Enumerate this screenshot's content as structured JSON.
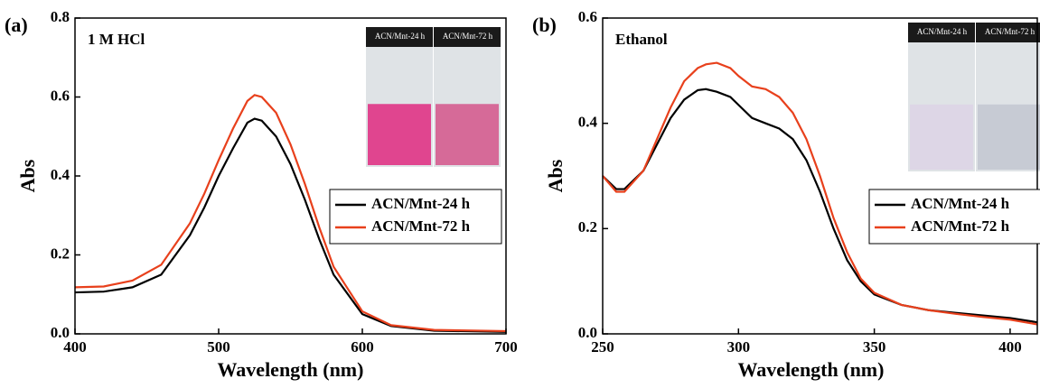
{
  "chart_data": [
    {
      "type": "line",
      "panel_label": "(a)",
      "annotation": "1 M HCl",
      "x_label": "Wavelength (nm)",
      "y_label": "Abs",
      "inset_labels": [
        "ACN/Mnt-24 h",
        "ACN/Mnt-72 h"
      ],
      "x": [
        400,
        420,
        440,
        460,
        480,
        490,
        500,
        510,
        520,
        525,
        530,
        540,
        550,
        560,
        570,
        580,
        600,
        620,
        650,
        700
      ],
      "series": [
        {
          "name": "ACN/Mnt-24 h",
          "color": "#000000",
          "values": [
            0.105,
            0.107,
            0.118,
            0.15,
            0.25,
            0.32,
            0.4,
            0.47,
            0.535,
            0.545,
            0.54,
            0.5,
            0.43,
            0.34,
            0.24,
            0.15,
            0.05,
            0.02,
            0.008,
            0.005
          ]
        },
        {
          "name": "ACN/Mnt-72 h",
          "color": "#e8401c",
          "values": [
            0.118,
            0.12,
            0.135,
            0.175,
            0.28,
            0.355,
            0.44,
            0.52,
            0.59,
            0.605,
            0.6,
            0.56,
            0.48,
            0.38,
            0.27,
            0.17,
            0.057,
            0.022,
            0.01,
            0.007
          ]
        }
      ],
      "xlim": [
        400,
        700
      ],
      "xticks": [
        400,
        500,
        600,
        700
      ],
      "ylim": [
        0,
        0.8
      ],
      "yticks": [
        {
          "value": 0,
          "label": "0.0"
        },
        0.2,
        0.4,
        0.6,
        0.8
      ],
      "legend": "center right"
    },
    {
      "type": "line",
      "panel_label": "(b)",
      "annotation": "Ethanol",
      "x_label": "Wavelength (nm)",
      "y_label": "Abs",
      "inset_labels": [
        "ACN/Mnt-24 h",
        "ACN/Mnt-72 h"
      ],
      "x": [
        250,
        255,
        258,
        265,
        270,
        275,
        280,
        285,
        288,
        292,
        297,
        300,
        305,
        310,
        315,
        320,
        325,
        330,
        335,
        340,
        345,
        350,
        360,
        370,
        380,
        390,
        400,
        410
      ],
      "series": [
        {
          "name": "ACN/Mnt-24 h",
          "color": "#000000",
          "values": [
            0.3,
            0.275,
            0.275,
            0.31,
            0.36,
            0.41,
            0.445,
            0.463,
            0.465,
            0.46,
            0.45,
            0.435,
            0.41,
            0.4,
            0.39,
            0.37,
            0.33,
            0.27,
            0.2,
            0.14,
            0.1,
            0.075,
            0.055,
            0.045,
            0.04,
            0.035,
            0.03,
            0.022
          ]
        },
        {
          "name": "ACN/Mnt-72 h",
          "color": "#e8401c",
          "values": [
            0.3,
            0.27,
            0.27,
            0.31,
            0.37,
            0.43,
            0.48,
            0.505,
            0.512,
            0.515,
            0.505,
            0.49,
            0.47,
            0.465,
            0.45,
            0.42,
            0.37,
            0.3,
            0.22,
            0.155,
            0.105,
            0.078,
            0.055,
            0.045,
            0.038,
            0.032,
            0.027,
            0.018
          ]
        }
      ],
      "xlim": [
        250,
        410
      ],
      "xticks": [
        250,
        300,
        350,
        400
      ],
      "ylim": [
        0,
        0.6
      ],
      "yticks": [
        {
          "value": 0,
          "label": "0.0"
        },
        0.2,
        0.4,
        0.6
      ],
      "legend": "center right"
    }
  ]
}
